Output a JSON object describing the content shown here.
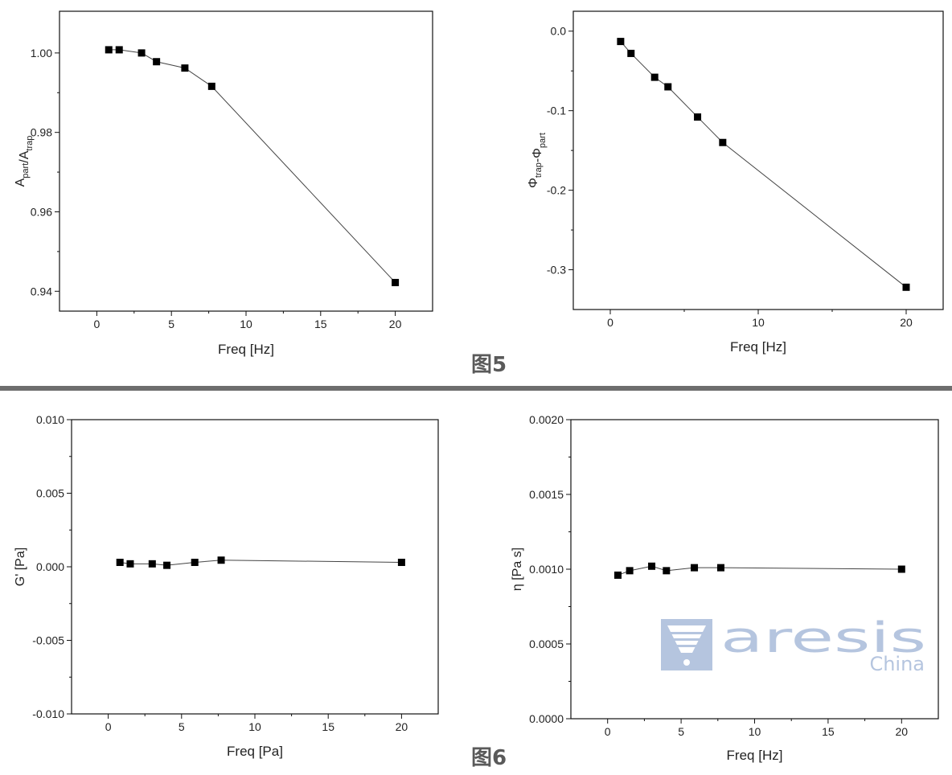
{
  "figure_captions": [
    "图5",
    "图6"
  ],
  "watermark": {
    "brand": "aresis",
    "subtitle": "China",
    "color": "#aebfdc"
  },
  "chart_data": [
    {
      "type": "scatter",
      "title": "",
      "xlabel": "Freq [Hz]",
      "ylabel": "A_part/A_trap",
      "xlim": [
        -2.5,
        22.5
      ],
      "ylim": [
        0.935,
        1.0105
      ],
      "xticks": [
        0,
        5,
        10,
        15,
        20
      ],
      "yticks": [
        0.94,
        0.96,
        0.98,
        1.0
      ],
      "ytick_labels": [
        "0.94",
        "0.96",
        "0.98",
        "1.00"
      ],
      "x_minor_ticks": [
        2.5,
        7.5,
        12.5,
        17.5
      ],
      "y_minor_ticks": [
        0.95,
        0.97,
        0.99
      ],
      "grid": false,
      "connected": true,
      "series": [
        {
          "x": [
            0.8,
            1.5,
            3.0,
            4.0,
            5.9,
            7.7,
            20
          ],
          "y": [
            1.0008,
            1.0008,
            1.0,
            0.9978,
            0.9962,
            0.9916,
            0.9422
          ]
        }
      ]
    },
    {
      "type": "scatter",
      "title": "",
      "xlabel": "Freq [Hz]",
      "ylabel": "Φ_trap-Φ_part",
      "xlim": [
        -2.5,
        22.5
      ],
      "ylim": [
        -0.35,
        0.025
      ],
      "xticks": [
        0,
        10,
        20
      ],
      "yticks": [
        -0.3,
        -0.2,
        -0.1,
        0.0
      ],
      "ytick_labels": [
        "-0.3",
        "-0.2",
        "-0.1",
        "0.0"
      ],
      "x_minor_ticks": [
        5,
        15
      ],
      "y_minor_ticks": [
        -0.25,
        -0.15,
        -0.05
      ],
      "grid": false,
      "connected": true,
      "series": [
        {
          "x": [
            0.7,
            1.4,
            3.0,
            3.9,
            5.9,
            7.6,
            20
          ],
          "y": [
            -0.013,
            -0.028,
            -0.058,
            -0.07,
            -0.108,
            -0.14,
            -0.322
          ]
        }
      ]
    },
    {
      "type": "scatter",
      "title": "",
      "xlabel": "Freq [Pa]",
      "ylabel": "G' [Pa]",
      "xlim": [
        -2.5,
        22.5
      ],
      "ylim": [
        -0.01,
        0.01
      ],
      "xticks": [
        0,
        5,
        10,
        15,
        20
      ],
      "yticks": [
        -0.01,
        -0.005,
        0.0,
        0.005,
        0.01
      ],
      "ytick_labels": [
        "-0.010",
        "-0.005",
        "0.000",
        "0.005",
        "0.010"
      ],
      "x_minor_ticks": [
        2.5,
        7.5,
        12.5,
        17.5
      ],
      "y_minor_ticks": [
        -0.0075,
        -0.0025,
        0.0025,
        0.0075
      ],
      "grid": false,
      "connected": true,
      "series": [
        {
          "x": [
            0.8,
            1.5,
            3.0,
            4.0,
            5.9,
            7.7,
            20
          ],
          "y": [
            0.0003,
            0.0002,
            0.0002,
            0.0001,
            0.0003,
            0.00045,
            0.0003
          ]
        }
      ]
    },
    {
      "type": "scatter",
      "title": "",
      "xlabel": "Freq [Hz]",
      "ylabel": "η [Pa s]",
      "xlim": [
        -2.5,
        22.5
      ],
      "ylim": [
        0.0,
        0.002
      ],
      "xticks": [
        0,
        5,
        10,
        15,
        20
      ],
      "yticks": [
        0.0,
        0.0005,
        0.001,
        0.0015,
        0.002
      ],
      "ytick_labels": [
        "0.0000",
        "0.0005",
        "0.0010",
        "0.0015",
        "0.0020"
      ],
      "x_minor_ticks": [
        2.5,
        7.5,
        12.5,
        17.5
      ],
      "y_minor_ticks": [
        0.00025,
        0.00075,
        0.00125,
        0.00175
      ],
      "grid": false,
      "connected": true,
      "series": [
        {
          "x": [
            0.7,
            1.5,
            3.0,
            4.0,
            5.9,
            7.7,
            20
          ],
          "y": [
            0.00096,
            0.00099,
            0.00102,
            0.00099,
            0.00101,
            0.00101,
            0.001
          ]
        }
      ]
    }
  ]
}
